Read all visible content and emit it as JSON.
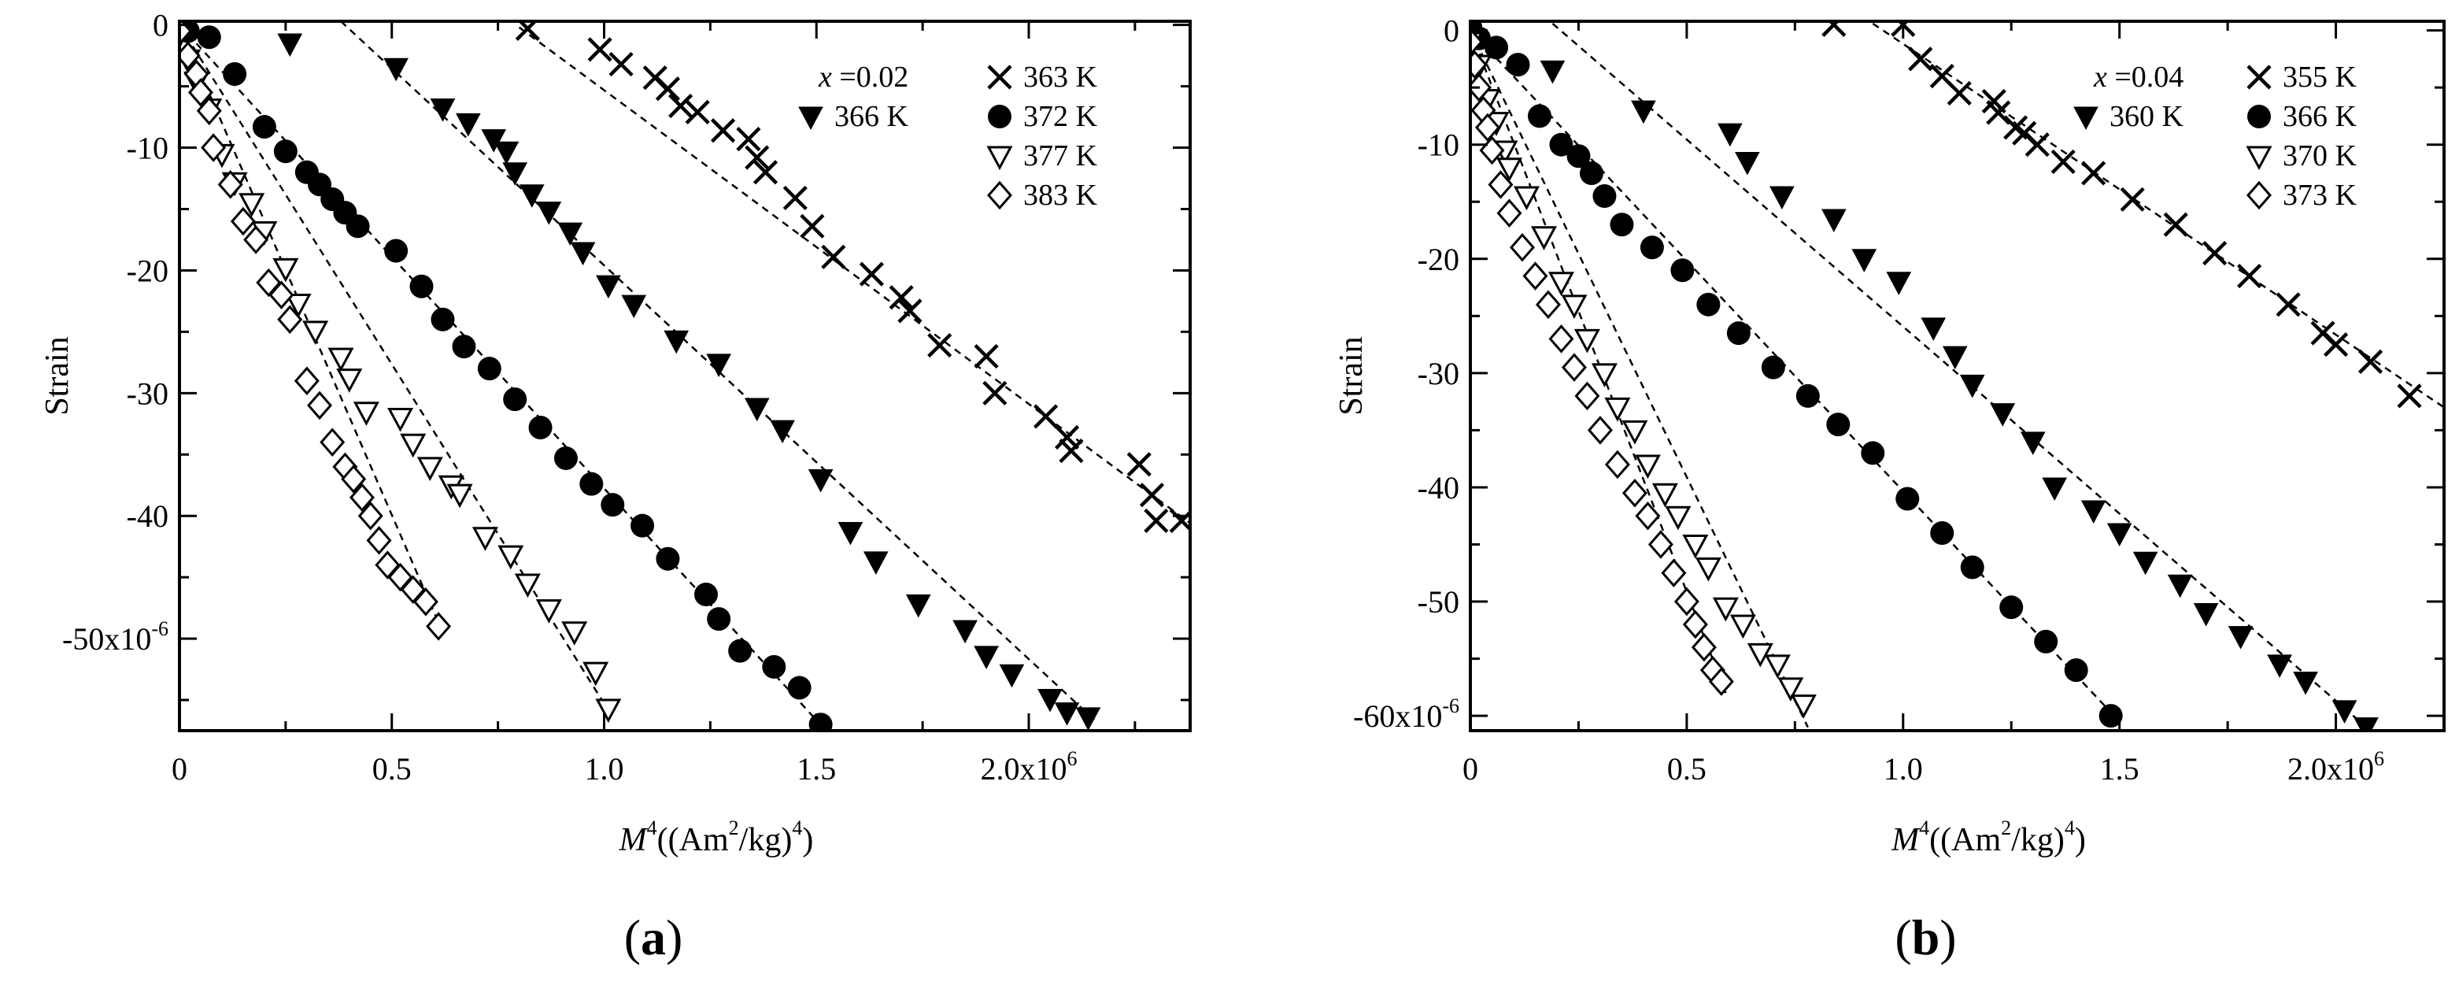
{
  "chart_data": [
    {
      "type": "scatter",
      "panel_label": "(a)",
      "panel_letter": "a",
      "title": "",
      "xlabel": "M",
      "xlabel_power": "4",
      "xlabel_unit_prefix": "((Am",
      "xlabel_unit_power": "2",
      "xlabel_unit_suffix": "/kg)",
      "xlabel_unit_power2": "4",
      "xlabel_unit_close": ")",
      "ylabel": "Strain",
      "xlim": [
        0,
        2.38
      ],
      "ylim": [
        -57.5,
        0.3
      ],
      "x_ticks": [
        0,
        0.5,
        1.0,
        1.5,
        2.0
      ],
      "x_tick_labels": [
        "0",
        "0.5",
        "1.0",
        "1.5",
        "2.0x10"
      ],
      "x_tick_exp": [
        "",
        "",
        "",
        "",
        "6"
      ],
      "y_ticks": [
        0,
        -10,
        -20,
        -30,
        -40,
        -50
      ],
      "y_tick_labels": [
        "0",
        "-10",
        "-20",
        "-30",
        "-40",
        "-50x10"
      ],
      "y_tick_exp": [
        "",
        "",
        "",
        "",
        "",
        "-6"
      ],
      "legend_header": "x =0.02",
      "legend_header_var": "x",
      "legend_header_value": " =0.02",
      "x_unit": "10^6 (Am^2/kg)^4",
      "y_unit": "10^-6",
      "series": [
        {
          "name": "363 K",
          "marker": "x",
          "x": [
            0.82,
            0.99,
            1.04,
            1.12,
            1.15,
            1.18,
            1.22,
            1.28,
            1.34,
            1.36,
            1.38,
            1.45,
            1.49,
            1.54,
            1.63,
            1.7,
            1.72,
            1.79,
            1.9,
            1.92,
            2.04,
            2.09,
            2.1,
            2.26,
            2.29,
            2.3,
            2.36
          ],
          "y": [
            -0.3,
            -2.0,
            -3.2,
            -4.3,
            -5.2,
            -6.6,
            -7.1,
            -8.6,
            -9.3,
            -10.8,
            -12.0,
            -14.1,
            -16.4,
            -18.9,
            -20.3,
            -22.2,
            -23.3,
            -26.1,
            -27.0,
            -30.0,
            -31.9,
            -33.6,
            -34.7,
            -35.8,
            -38.3,
            -40.4,
            -40.4
          ],
          "fit": [
            [
              0.8,
              -0.2
            ],
            [
              2.38,
              -40.6
            ]
          ]
        },
        {
          "name": "366 K",
          "marker": "triangle-down-filled",
          "x": [
            0.26,
            0.51,
            0.62,
            0.68,
            0.74,
            0.77,
            0.79,
            0.83,
            0.87,
            0.92,
            0.95,
            1.01,
            1.07,
            1.17,
            1.27,
            1.36,
            1.42,
            1.51,
            1.58,
            1.64,
            1.74,
            1.85,
            1.9,
            1.96,
            2.05,
            2.09,
            2.14
          ],
          "y": [
            -1.5,
            -3.5,
            -6.8,
            -8.0,
            -9.3,
            -10.3,
            -12.0,
            -13.8,
            -15.2,
            -16.9,
            -18.5,
            -21.2,
            -22.8,
            -25.7,
            -27.6,
            -31.2,
            -33.0,
            -37.0,
            -41.3,
            -43.7,
            -47.2,
            -49.3,
            -51.4,
            -52.9,
            -54.9,
            -56.0,
            -56.4
          ],
          "fit": [
            [
              0.38,
              0.3
            ],
            [
              2.16,
              -56.8
            ]
          ]
        },
        {
          "name": "372 K",
          "marker": "circle-filled",
          "x": [
            0.0,
            0.02,
            0.07,
            0.13,
            0.2,
            0.25,
            0.3,
            0.33,
            0.36,
            0.39,
            0.42,
            0.51,
            0.57,
            0.62,
            0.67,
            0.73,
            0.79,
            0.85,
            0.91,
            0.97,
            1.02,
            1.09,
            1.15,
            1.24,
            1.27,
            1.32,
            1.4,
            1.46,
            1.51
          ],
          "y": [
            0.2,
            -0.5,
            -1.0,
            -4.0,
            -8.3,
            -10.3,
            -12.0,
            -13.0,
            -14.2,
            -15.3,
            -16.4,
            -18.4,
            -21.3,
            -24.0,
            -26.2,
            -28.0,
            -30.5,
            -32.8,
            -35.3,
            -37.4,
            -39.1,
            -40.8,
            -43.5,
            -46.4,
            -48.4,
            -51.0,
            -52.3,
            -54.0,
            -57.0
          ],
          "fit": [
            [
              0.0,
              0.0
            ],
            [
              1.52,
              -57.4
            ]
          ]
        },
        {
          "name": "377 K",
          "marker": "triangle-down-open",
          "x": [
            0.0,
            0.02,
            0.04,
            0.07,
            0.1,
            0.13,
            0.17,
            0.2,
            0.25,
            0.28,
            0.32,
            0.38,
            0.4,
            0.44,
            0.52,
            0.55,
            0.59,
            0.64,
            0.66,
            0.72,
            0.78,
            0.82,
            0.87,
            0.93,
            0.98,
            1.01
          ],
          "y": [
            -0.8,
            -2.8,
            -4.6,
            -6.8,
            -10.5,
            -12.8,
            -14.5,
            -16.8,
            -19.8,
            -22.7,
            -24.9,
            -27.1,
            -28.8,
            -31.5,
            -32.0,
            -34.1,
            -36.0,
            -37.5,
            -38.2,
            -41.7,
            -43.2,
            -45.5,
            -47.6,
            -49.4,
            -52.7,
            -55.7
          ],
          "fit": [
            [
              0.0,
              0.0
            ],
            [
              1.02,
              -56.4
            ]
          ]
        },
        {
          "name": "383 K",
          "marker": "diamond-open",
          "x": [
            0.0,
            0.02,
            0.04,
            0.05,
            0.07,
            0.08,
            0.12,
            0.15,
            0.18,
            0.21,
            0.24,
            0.26,
            0.3,
            0.33,
            0.36,
            0.39,
            0.41,
            0.43,
            0.45,
            0.47,
            0.49,
            0.52,
            0.55,
            0.58,
            0.61
          ],
          "y": [
            -0.5,
            -2.5,
            -4.0,
            -5.5,
            -7.0,
            -10.0,
            -13.0,
            -16.0,
            -17.5,
            -21.0,
            -22.0,
            -24.0,
            -29.0,
            -31.0,
            -34.0,
            -36.0,
            -37.0,
            -38.5,
            -40.0,
            -42.0,
            -44.0,
            -45.0,
            -46.0,
            -47.0,
            -49.0
          ],
          "fit": [
            [
              0.0,
              0.0
            ],
            [
              0.62,
              -49.5
            ]
          ]
        }
      ]
    },
    {
      "type": "scatter",
      "panel_label": "(b)",
      "panel_letter": "b",
      "title": "",
      "xlabel": "M",
      "xlabel_power": "4",
      "xlabel_unit_prefix": "((Am",
      "xlabel_unit_power": "2",
      "xlabel_unit_suffix": "/kg)",
      "xlabel_unit_power2": "4",
      "xlabel_unit_close": ")",
      "ylabel": "Strain",
      "xlim": [
        0,
        2.25
      ],
      "ylim": [
        -61.3,
        0.8
      ],
      "x_ticks": [
        0,
        0.5,
        1.0,
        1.5,
        2.0
      ],
      "x_tick_labels": [
        "0",
        "0.5",
        "1.0",
        "1.5",
        "2.0x10"
      ],
      "x_tick_exp": [
        "",
        "",
        "",
        "",
        "6"
      ],
      "y_ticks": [
        0,
        -10,
        -20,
        -30,
        -40,
        -50,
        -60
      ],
      "y_tick_labels": [
        "0",
        "-10",
        "-20",
        "-30",
        "-40",
        "-50",
        "-60x10"
      ],
      "y_tick_exp": [
        "",
        "",
        "",
        "",
        "",
        "",
        "-6"
      ],
      "legend_header": "x =0.04",
      "legend_header_var": "x",
      "legend_header_value": " =0.04",
      "x_unit": "10^6 (Am^2/kg)^4",
      "y_unit": "10^-6",
      "series": [
        {
          "name": "355 K",
          "marker": "x",
          "x": [
            0.84,
            1.0,
            1.04,
            1.09,
            1.13,
            1.21,
            1.22,
            1.26,
            1.28,
            1.31,
            1.37,
            1.44,
            1.53,
            1.63,
            1.72,
            1.8,
            1.89,
            1.97,
            2.0,
            2.08,
            2.17
          ],
          "y": [
            0.5,
            0.5,
            -2.5,
            -4.0,
            -5.5,
            -6.2,
            -7.2,
            -8.5,
            -9.0,
            -10.0,
            -11.5,
            -12.5,
            -14.8,
            -17.0,
            -19.5,
            -21.5,
            -24.0,
            -26.5,
            -27.5,
            -29.0,
            -32.0
          ],
          "fit": [
            [
              0.93,
              0.6
            ],
            [
              2.25,
              -33.0
            ]
          ]
        },
        {
          "name": "360 K",
          "marker": "triangle-down-filled",
          "x": [
            0.19,
            0.4,
            0.6,
            0.64,
            0.72,
            0.84,
            0.91,
            0.99,
            1.07,
            1.12,
            1.16,
            1.23,
            1.3,
            1.35,
            1.44,
            1.5,
            1.56,
            1.64,
            1.7,
            1.78,
            1.87,
            1.93,
            2.02,
            2.07
          ],
          "y": [
            -3.5,
            -7.0,
            -9.0,
            -11.5,
            -14.5,
            -16.5,
            -20.0,
            -22.0,
            -26.0,
            -28.5,
            -31.0,
            -33.5,
            -36.0,
            -40.0,
            -42.0,
            -44.0,
            -46.5,
            -48.5,
            -51.0,
            -53.0,
            -55.5,
            -57.0,
            -59.5,
            -61.0
          ],
          "fit": [
            [
              0.19,
              0.6
            ],
            [
              2.08,
              -61.3
            ]
          ]
        },
        {
          "name": "366 K",
          "marker": "circle-filled",
          "x": [
            0.0,
            0.02,
            0.06,
            0.11,
            0.16,
            0.21,
            0.25,
            0.28,
            0.31,
            0.35,
            0.42,
            0.49,
            0.55,
            0.62,
            0.7,
            0.78,
            0.85,
            0.93,
            1.01,
            1.09,
            1.16,
            1.25,
            1.33,
            1.4,
            1.48
          ],
          "y": [
            0.3,
            -0.7,
            -1.5,
            -3.0,
            -7.5,
            -10.0,
            -11.0,
            -12.5,
            -14.5,
            -17.0,
            -19.0,
            -21.0,
            -24.0,
            -26.5,
            -29.5,
            -32.0,
            -34.5,
            -37.0,
            -41.0,
            -44.0,
            -47.0,
            -50.5,
            -53.5,
            -56.0,
            -60.0
          ],
          "fit": [
            [
              0.0,
              0.0
            ],
            [
              1.5,
              -60.5
            ]
          ]
        },
        {
          "name": "370 K",
          "marker": "triangle-down-open",
          "x": [
            0.0,
            0.02,
            0.04,
            0.06,
            0.08,
            0.09,
            0.13,
            0.17,
            0.21,
            0.24,
            0.27,
            0.31,
            0.34,
            0.38,
            0.41,
            0.45,
            0.48,
            0.52,
            0.55,
            0.59,
            0.63,
            0.67,
            0.71,
            0.74,
            0.77
          ],
          "y": [
            -1.0,
            -3.0,
            -6.0,
            -8.0,
            -10.5,
            -12.0,
            -14.5,
            -18.0,
            -22.0,
            -24.0,
            -27.0,
            -30.0,
            -33.0,
            -35.0,
            -38.0,
            -40.5,
            -42.5,
            -45.0,
            -47.0,
            -50.5,
            -52.0,
            -54.5,
            -55.5,
            -57.5,
            -59.0
          ],
          "fit": [
            [
              0.0,
              0.0
            ],
            [
              0.78,
              -61.0
            ]
          ]
        },
        {
          "name": "373 K",
          "marker": "diamond-open",
          "x": [
            0.0,
            0.01,
            0.02,
            0.03,
            0.04,
            0.05,
            0.07,
            0.09,
            0.12,
            0.15,
            0.18,
            0.21,
            0.24,
            0.27,
            0.3,
            0.34,
            0.38,
            0.41,
            0.44,
            0.47,
            0.5,
            0.52,
            0.54,
            0.56,
            0.58
          ],
          "y": [
            -1.0,
            -3.0,
            -5.0,
            -7.0,
            -8.5,
            -10.5,
            -13.5,
            -16.0,
            -19.0,
            -21.5,
            -24.0,
            -27.0,
            -29.5,
            -32.0,
            -35.0,
            -38.0,
            -40.5,
            -42.5,
            -45.0,
            -47.5,
            -50.0,
            -52.0,
            -54.0,
            -56.0,
            -57.0
          ],
          "fit": [
            [
              0.0,
              0.0
            ],
            [
              0.59,
              -58.0
            ]
          ]
        }
      ]
    }
  ]
}
